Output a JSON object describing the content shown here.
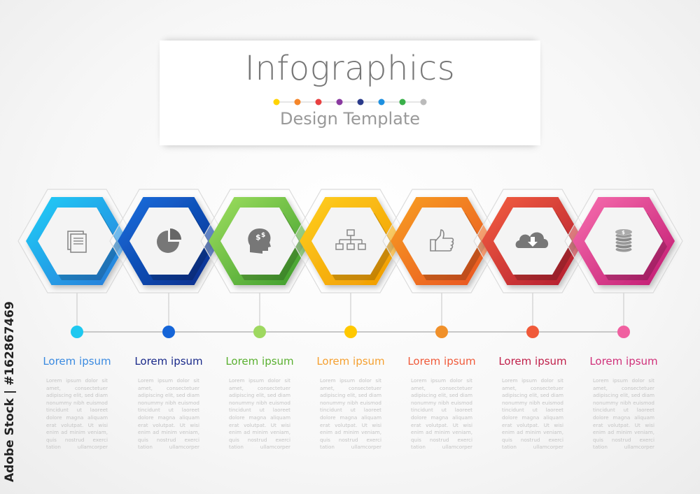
{
  "header": {
    "title": "Infographics",
    "subtitle": "Design Template",
    "dot_colors": [
      "#ffd400",
      "#f5862a",
      "#e84040",
      "#8a3aa0",
      "#2a3a8a",
      "#1e90e0",
      "#3ab04a",
      "#bbbbbb"
    ]
  },
  "steps": [
    {
      "icon": "documents-icon",
      "title": "Lorem ipsum",
      "ring": [
        "#1ed0f8",
        "#2a78d8"
      ],
      "dot": "#1ec8f0",
      "title_color": "#3a8ae0"
    },
    {
      "icon": "pie-chart-icon",
      "title": "Lorem ipsum",
      "ring": [
        "#1670e0",
        "#0a2a88"
      ],
      "dot": "#1565d8",
      "title_color": "#1a2a8a"
    },
    {
      "icon": "head-dollar-icon",
      "title": "Lorem ipsum",
      "ring": [
        "#a0e060",
        "#3a9a2a"
      ],
      "dot": "#9ed860",
      "title_color": "#5ab030"
    },
    {
      "icon": "org-chart-icon",
      "title": "Lorem ipsum",
      "ring": [
        "#ffd020",
        "#f09800"
      ],
      "dot": "#ffc800",
      "title_color": "#f5a030"
    },
    {
      "icon": "thumbs-up-icon",
      "title": "Lorem ipsum",
      "ring": [
        "#f8a020",
        "#e85020"
      ],
      "dot": "#f0902a",
      "title_color": "#f05a3a"
    },
    {
      "icon": "cloud-download-icon",
      "title": "Lorem ipsum",
      "ring": [
        "#f56040",
        "#b01a30"
      ],
      "dot": "#f05a3a",
      "title_color": "#c0204a"
    },
    {
      "icon": "coins-icon",
      "title": "Lorem ipsum",
      "ring": [
        "#f870b0",
        "#c01870"
      ],
      "dot": "#f060a0",
      "title_color": "#d0307a"
    }
  ],
  "body_text": "Lorem ipsum dolor sit amet, consectetuer adipiscing elit, sed diam nonummy nibh euismod tincidunt ut laoreet dolore magna aliquam erat volutpat. Ut wisi enim ad minim veniam, quis nostrud exerci tation ullamcorper",
  "watermark": "Adobe Stock | #162867469"
}
